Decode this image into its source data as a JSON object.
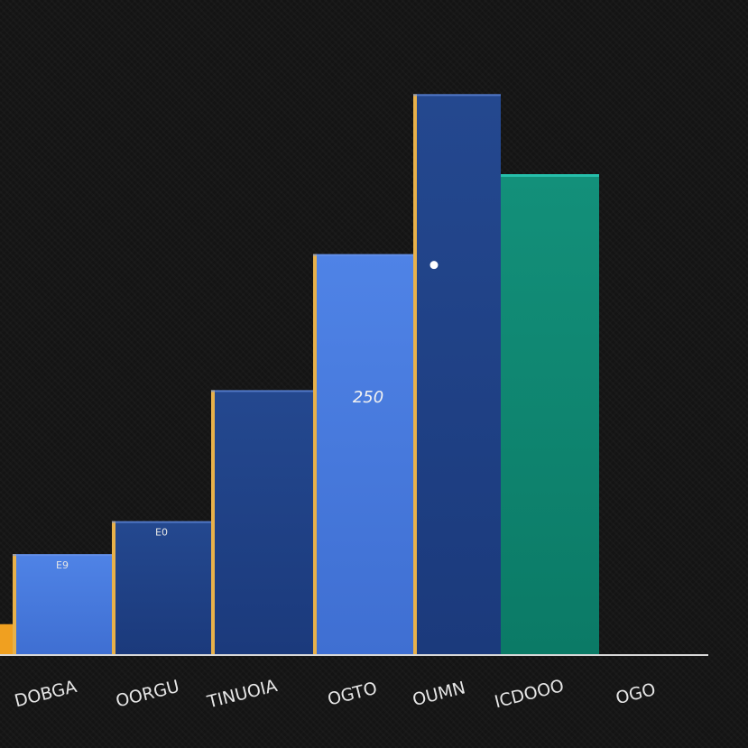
{
  "chart_data": {
    "type": "bar",
    "categories": [
      "DOBGA",
      "OORGU",
      "TINUOIA",
      "OGTO",
      "OUMN",
      "ICDOOO",
      "OGO"
    ],
    "values": [
      0,
      100,
      133,
      264,
      400,
      560,
      480
    ],
    "data_labels": [
      "",
      "E9",
      "E0",
      "",
      "",
      "",
      ""
    ],
    "annotations": [
      {
        "text": "250"
      }
    ],
    "title": "",
    "xlabel": "",
    "ylabel": "",
    "ylim": [
      0,
      600
    ],
    "grid": false,
    "legend": "none",
    "colors": {
      "bar_light": "#4a7ce0",
      "bar_dark": "#1f3f86",
      "bar_teal": "#0f8a72",
      "edge_gold": "#e8b14a",
      "first_bar": "#f0a020",
      "text": "#e6e6e6",
      "axis": "#d8d8d8"
    }
  }
}
